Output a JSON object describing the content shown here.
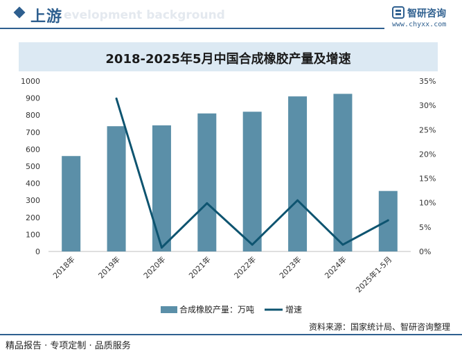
{
  "header": {
    "section_title": "上游",
    "section_subtitle_en": "evelopment background",
    "brand_name": "智研咨询",
    "brand_url": "www.chyxx.com"
  },
  "colors": {
    "bar": "#5b8fa8",
    "line": "#0e5470",
    "accent": "#2e5f8f",
    "title_band": "#dce9f3"
  },
  "chart_data": {
    "type": "bar",
    "title": "2018-2025年5月中国合成橡胶产量及增速",
    "categories": [
      "2018年",
      "2019年",
      "2020年",
      "2021年",
      "2022年",
      "2023年",
      "2024年",
      "2025年1-5月"
    ],
    "series": [
      {
        "name": "合成橡胶产量：万吨",
        "type": "bar",
        "axis": "left",
        "values": [
          560,
          735,
          740,
          810,
          820,
          910,
          925,
          355
        ]
      },
      {
        "name": "增速",
        "type": "line",
        "axis": "right",
        "values": [
          null,
          31.4,
          0.8,
          9.9,
          1.4,
          10.5,
          1.4,
          6.4
        ]
      }
    ],
    "y_left": {
      "min": 0,
      "max": 1000,
      "ticks": [
        "0",
        "100",
        "200",
        "300",
        "400",
        "500",
        "600",
        "700",
        "800",
        "900",
        "1000"
      ]
    },
    "y_right": {
      "min": 0,
      "max": 35,
      "ticks": [
        "0%",
        "5%",
        "10%",
        "15%",
        "20%",
        "25%",
        "30%",
        "35%"
      ]
    },
    "grid": false,
    "legend_position": "bottom"
  },
  "footer": {
    "source": "资料来源：国家统计局、智研咨询整理",
    "slogan": "精品报告 · 专项定制 · 品质服务"
  }
}
